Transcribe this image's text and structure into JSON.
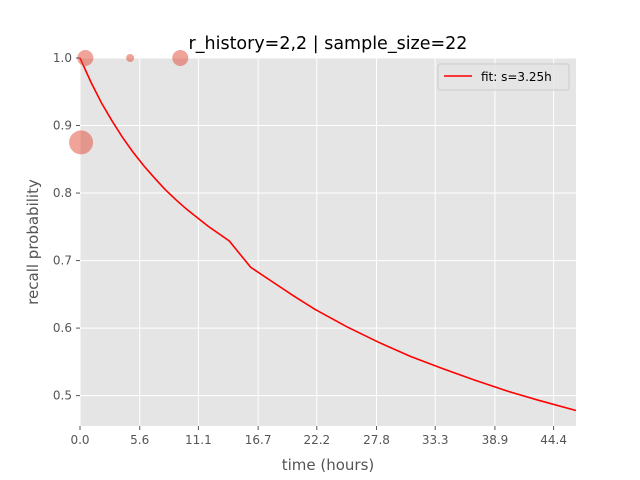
{
  "chart_data": {
    "type": "scatter",
    "title": "r_history=2,2 | sample_size=22",
    "xlabel": "time (hours)",
    "ylabel": "recall probability",
    "xlim": [
      0,
      46.5
    ],
    "ylim": [
      0.455,
      1.0
    ],
    "xticks": [
      {
        "value": 0.0,
        "label": "0.0"
      },
      {
        "value": 5.6,
        "label": "5.6"
      },
      {
        "value": 11.1,
        "label": "11.1"
      },
      {
        "value": 16.7,
        "label": "16.7"
      },
      {
        "value": 22.2,
        "label": "22.2"
      },
      {
        "value": 27.8,
        "label": "27.8"
      },
      {
        "value": 33.3,
        "label": "33.3"
      },
      {
        "value": 38.9,
        "label": "38.9"
      },
      {
        "value": 44.4,
        "label": "44.4"
      }
    ],
    "yticks": [
      {
        "value": 0.5,
        "label": "0.5"
      },
      {
        "value": 0.6,
        "label": "0.6"
      },
      {
        "value": 0.7,
        "label": "0.7"
      },
      {
        "value": 0.8,
        "label": "0.8"
      },
      {
        "value": 0.9,
        "label": "0.9"
      },
      {
        "value": 1.0,
        "label": "1.0"
      }
    ],
    "grid": true,
    "legend_position": "top-right",
    "points": [
      {
        "x": 0.1,
        "y": 0.875,
        "size": 12
      },
      {
        "x": 0.5,
        "y": 1.0,
        "size": 8
      },
      {
        "x": 4.7,
        "y": 1.0,
        "size": 4
      },
      {
        "x": 9.4,
        "y": 1.0,
        "size": 8
      }
    ],
    "fit": {
      "name": "fit: s=3.25h",
      "x": [
        0,
        1,
        2,
        3,
        4,
        5,
        6,
        7,
        8,
        9,
        10,
        12,
        14,
        16,
        18,
        20,
        22,
        25,
        28,
        31,
        34,
        37,
        40,
        43,
        46.5
      ],
      "y": [
        1.0,
        0.965,
        0.934,
        0.907,
        0.882,
        0.86,
        0.84,
        0.822,
        0.805,
        0.79,
        0.776,
        0.751,
        0.729,
        0.69,
        0.669,
        0.648,
        0.628,
        0.602,
        0.579,
        0.558,
        0.54,
        0.523,
        0.507,
        0.493,
        0.478
      ]
    },
    "colors": {
      "plot_bg": "#e5e5e5",
      "grid": "#ffffff",
      "points": "#e24a33",
      "fit_line": "#ff0000"
    }
  }
}
